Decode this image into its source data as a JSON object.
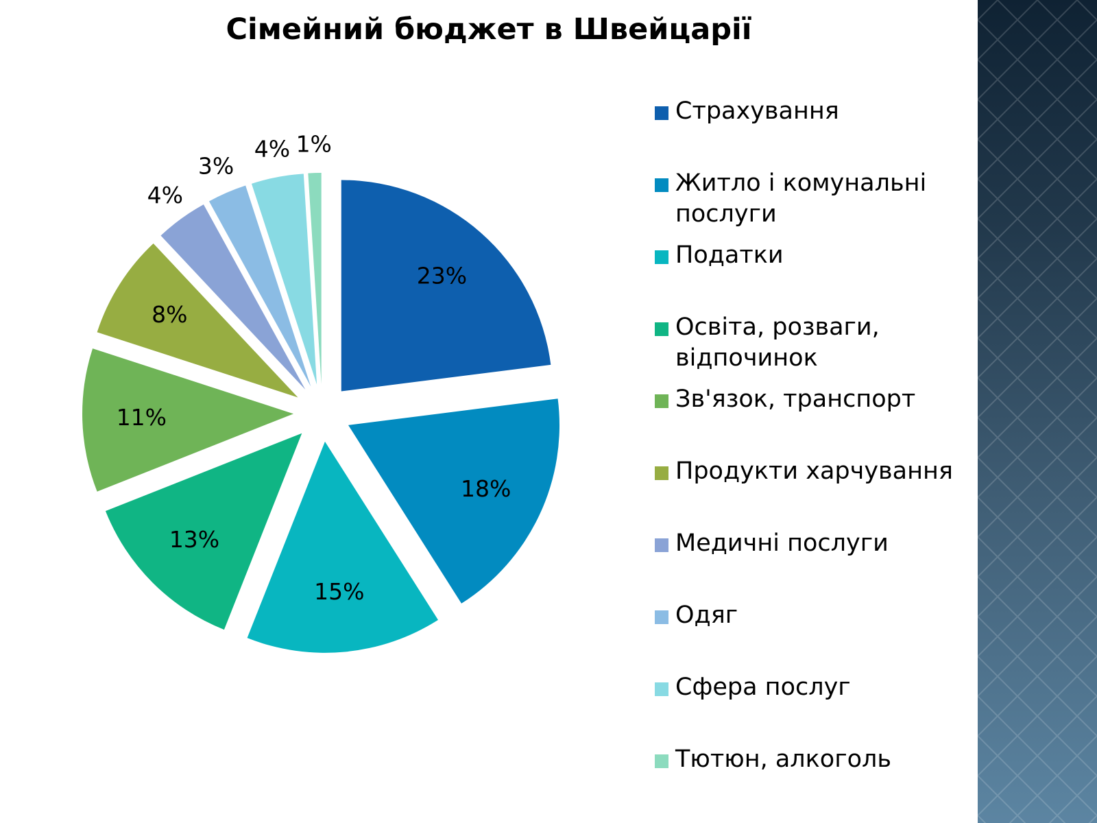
{
  "chart_data": {
    "type": "pie",
    "title": "Сімейний бюджет в Швейцарії",
    "categories": [
      "Страхування",
      "Житло і комунальні послуги",
      "Податки",
      "Освіта, розваги, відпочинок",
      "Зв'язок, транспорт",
      "Продукти харчування",
      "Медичні послуги",
      "Одяг",
      "Сфера послуг",
      "Тютюн, алкоголь"
    ],
    "values": [
      23,
      18,
      15,
      13,
      11,
      8,
      4,
      3,
      4,
      1
    ],
    "data_labels": [
      "23%",
      "18%",
      "15%",
      "13%",
      "11%",
      "8%",
      "4%",
      "3%",
      "4%",
      "1%"
    ],
    "colors": [
      "#0e5fae",
      "#028bc0",
      "#08b6c0",
      "#10b584",
      "#6fb457",
      "#97ad42",
      "#8aa3d6",
      "#8bbce4",
      "#88dae3",
      "#8cdbbe"
    ],
    "legend_position": "right",
    "exploded": true
  },
  "theme": {
    "side_panel_colors": [
      "#0f2233",
      "#3f5d74",
      "#5c85a2"
    ]
  }
}
